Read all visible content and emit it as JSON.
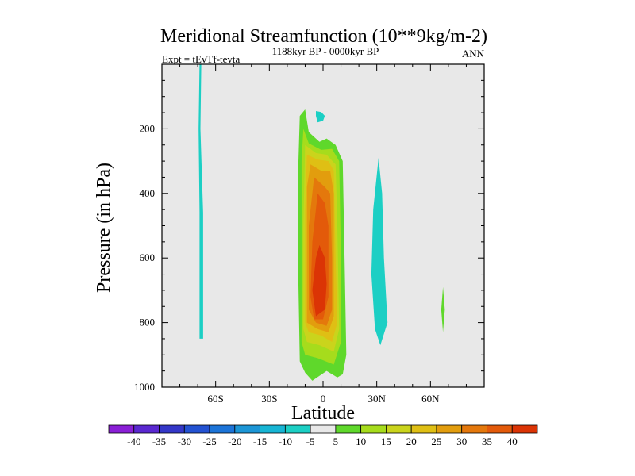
{
  "chart_data": {
    "type": "heatmap",
    "title": "Meridional Streamfunction (10**9kg/m-2)",
    "subtitle": "1188kyr BP - 0000kyr BP",
    "left_annotation": "Expt = tEvTf-tevta",
    "right_annotation": "ANN",
    "xlabel": "Latitude",
    "ylabel": "Pressure (in hPa)",
    "xlim": [
      -90,
      90
    ],
    "ylim": [
      1000,
      0
    ],
    "x_ticks": [
      {
        "value": -60,
        "label": "60S"
      },
      {
        "value": -30,
        "label": "30S"
      },
      {
        "value": 0,
        "label": "0"
      },
      {
        "value": 30,
        "label": "30N"
      },
      {
        "value": 60,
        "label": "60N"
      }
    ],
    "y_ticks": [
      {
        "value": 200,
        "label": "200"
      },
      {
        "value": 400,
        "label": "400"
      },
      {
        "value": 600,
        "label": "600"
      },
      {
        "value": 800,
        "label": "800"
      },
      {
        "value": 1000,
        "label": "1000"
      }
    ],
    "colorbar": {
      "labels": [
        "-40",
        "-35",
        "-30",
        "-25",
        "-20",
        "-15",
        "-10",
        "-5",
        "5",
        "10",
        "15",
        "20",
        "25",
        "30",
        "35",
        "40"
      ],
      "colors": [
        "#8a1fd6",
        "#5a28d0",
        "#3437c8",
        "#2352d2",
        "#1c74d8",
        "#1c96d6",
        "#17b5d4",
        "#1ccfc4",
        "#e8e8e8",
        "#5fd82b",
        "#a6dc1c",
        "#cad41c",
        "#dfbf14",
        "#e29d0e",
        "#e4780c",
        "#e35a0a",
        "#db3405"
      ]
    },
    "series": [
      {
        "name": "westerly-contours-center",
        "level_color_index": 9,
        "outline_lat_p": [
          [
            -13,
            160
          ],
          [
            -10,
            140
          ],
          [
            -8,
            210
          ],
          [
            -2,
            240
          ],
          [
            2,
            230
          ],
          [
            7,
            250
          ],
          [
            11,
            300
          ],
          [
            12,
            600
          ],
          [
            13,
            900
          ],
          [
            11,
            960
          ],
          [
            8,
            970
          ],
          [
            2,
            950
          ],
          [
            -6,
            980
          ],
          [
            -10,
            955
          ],
          [
            -13,
            920
          ],
          [
            -14,
            600
          ],
          [
            -14,
            350
          ]
        ]
      },
      {
        "name": "westerly-contours-level-10",
        "level_color_index": 10,
        "outline_lat_p": [
          [
            -11,
            200
          ],
          [
            -8,
            245
          ],
          [
            -1,
            265
          ],
          [
            5,
            262
          ],
          [
            9,
            300
          ],
          [
            10,
            600
          ],
          [
            10,
            860
          ],
          [
            6,
            930
          ],
          [
            -3,
            910
          ],
          [
            -10,
            900
          ],
          [
            -12,
            860
          ],
          [
            -12,
            500
          ],
          [
            -12,
            300
          ]
        ]
      },
      {
        "name": "westerly-contours-level-15",
        "level_color_index": 11,
        "outline_lat_p": [
          [
            -10,
            250
          ],
          [
            -4,
            275
          ],
          [
            2,
            280
          ],
          [
            7,
            310
          ],
          [
            8,
            500
          ],
          [
            9,
            820
          ],
          [
            6,
            890
          ],
          [
            -2,
            870
          ],
          [
            -9,
            860
          ],
          [
            -11,
            820
          ],
          [
            -11,
            500
          ]
        ]
      },
      {
        "name": "westerly-contours-level-20",
        "level_color_index": 12,
        "outline_lat_p": [
          [
            -9,
            280
          ],
          [
            -3,
            295
          ],
          [
            3,
            300
          ],
          [
            6,
            330
          ],
          [
            7,
            600
          ],
          [
            8,
            800
          ],
          [
            5,
            860
          ],
          [
            -1,
            840
          ],
          [
            -8,
            830
          ],
          [
            -10,
            800
          ],
          [
            -10,
            450
          ]
        ]
      },
      {
        "name": "westerly-contours-level-25",
        "level_color_index": 13,
        "outline_lat_p": [
          [
            -7,
            310
          ],
          [
            -1,
            330
          ],
          [
            4,
            330
          ],
          [
            6,
            400
          ],
          [
            6,
            780
          ],
          [
            3,
            830
          ],
          [
            -3,
            820
          ],
          [
            -9,
            800
          ],
          [
            -9,
            600
          ],
          [
            -9,
            380
          ]
        ]
      },
      {
        "name": "westerly-contours-level-30",
        "level_color_index": 14,
        "outline_lat_p": [
          [
            -5,
            350
          ],
          [
            1,
            380
          ],
          [
            4,
            400
          ],
          [
            5,
            600
          ],
          [
            5,
            760
          ],
          [
            2,
            810
          ],
          [
            -4,
            800
          ],
          [
            -8,
            760
          ],
          [
            -8,
            500
          ]
        ]
      },
      {
        "name": "westerly-contours-level-35",
        "level_color_index": 15,
        "outline_lat_p": [
          [
            -3,
            400
          ],
          [
            1,
            430
          ],
          [
            3,
            500
          ],
          [
            3,
            720
          ],
          [
            0,
            790
          ],
          [
            -5,
            790
          ],
          [
            -7,
            720
          ],
          [
            -6,
            550
          ]
        ]
      },
      {
        "name": "westerly-contours-level-40",
        "level_color_index": 16,
        "outline_lat_p": [
          [
            -2,
            560
          ],
          [
            1,
            600
          ],
          [
            2,
            680
          ],
          [
            1,
            760
          ],
          [
            -4,
            780
          ],
          [
            -6,
            700
          ],
          [
            -4,
            600
          ]
        ]
      },
      {
        "name": "easterly-contour-north",
        "level_color_index": 7,
        "outline_lat_p": [
          [
            31,
            290
          ],
          [
            33,
            400
          ],
          [
            34,
            600
          ],
          [
            36,
            800
          ],
          [
            32,
            870
          ],
          [
            29,
            820
          ],
          [
            27,
            650
          ],
          [
            28,
            450
          ]
        ]
      },
      {
        "name": "easterly-contour-60s",
        "level_color_index": 7,
        "outline_lat_p": [
          [
            -69,
            0
          ],
          [
            -68,
            0
          ],
          [
            -68.5,
            200
          ],
          [
            -67,
            460
          ],
          [
            -67,
            850
          ],
          [
            -69,
            850
          ],
          [
            -69,
            460
          ],
          [
            -69.5,
            200
          ]
        ]
      },
      {
        "name": "easterly-blob-equator",
        "level_color_index": 7,
        "outline_lat_p": [
          [
            -4,
            145
          ],
          [
            -1,
            148
          ],
          [
            1,
            160
          ],
          [
            0,
            175
          ],
          [
            -3,
            180
          ],
          [
            -4,
            160
          ]
        ]
      },
      {
        "name": "westerly-blob-70n",
        "level_color_index": 9,
        "outline_lat_p": [
          [
            67,
            690
          ],
          [
            68,
            760
          ],
          [
            67,
            830
          ],
          [
            66,
            760
          ]
        ]
      }
    ]
  }
}
